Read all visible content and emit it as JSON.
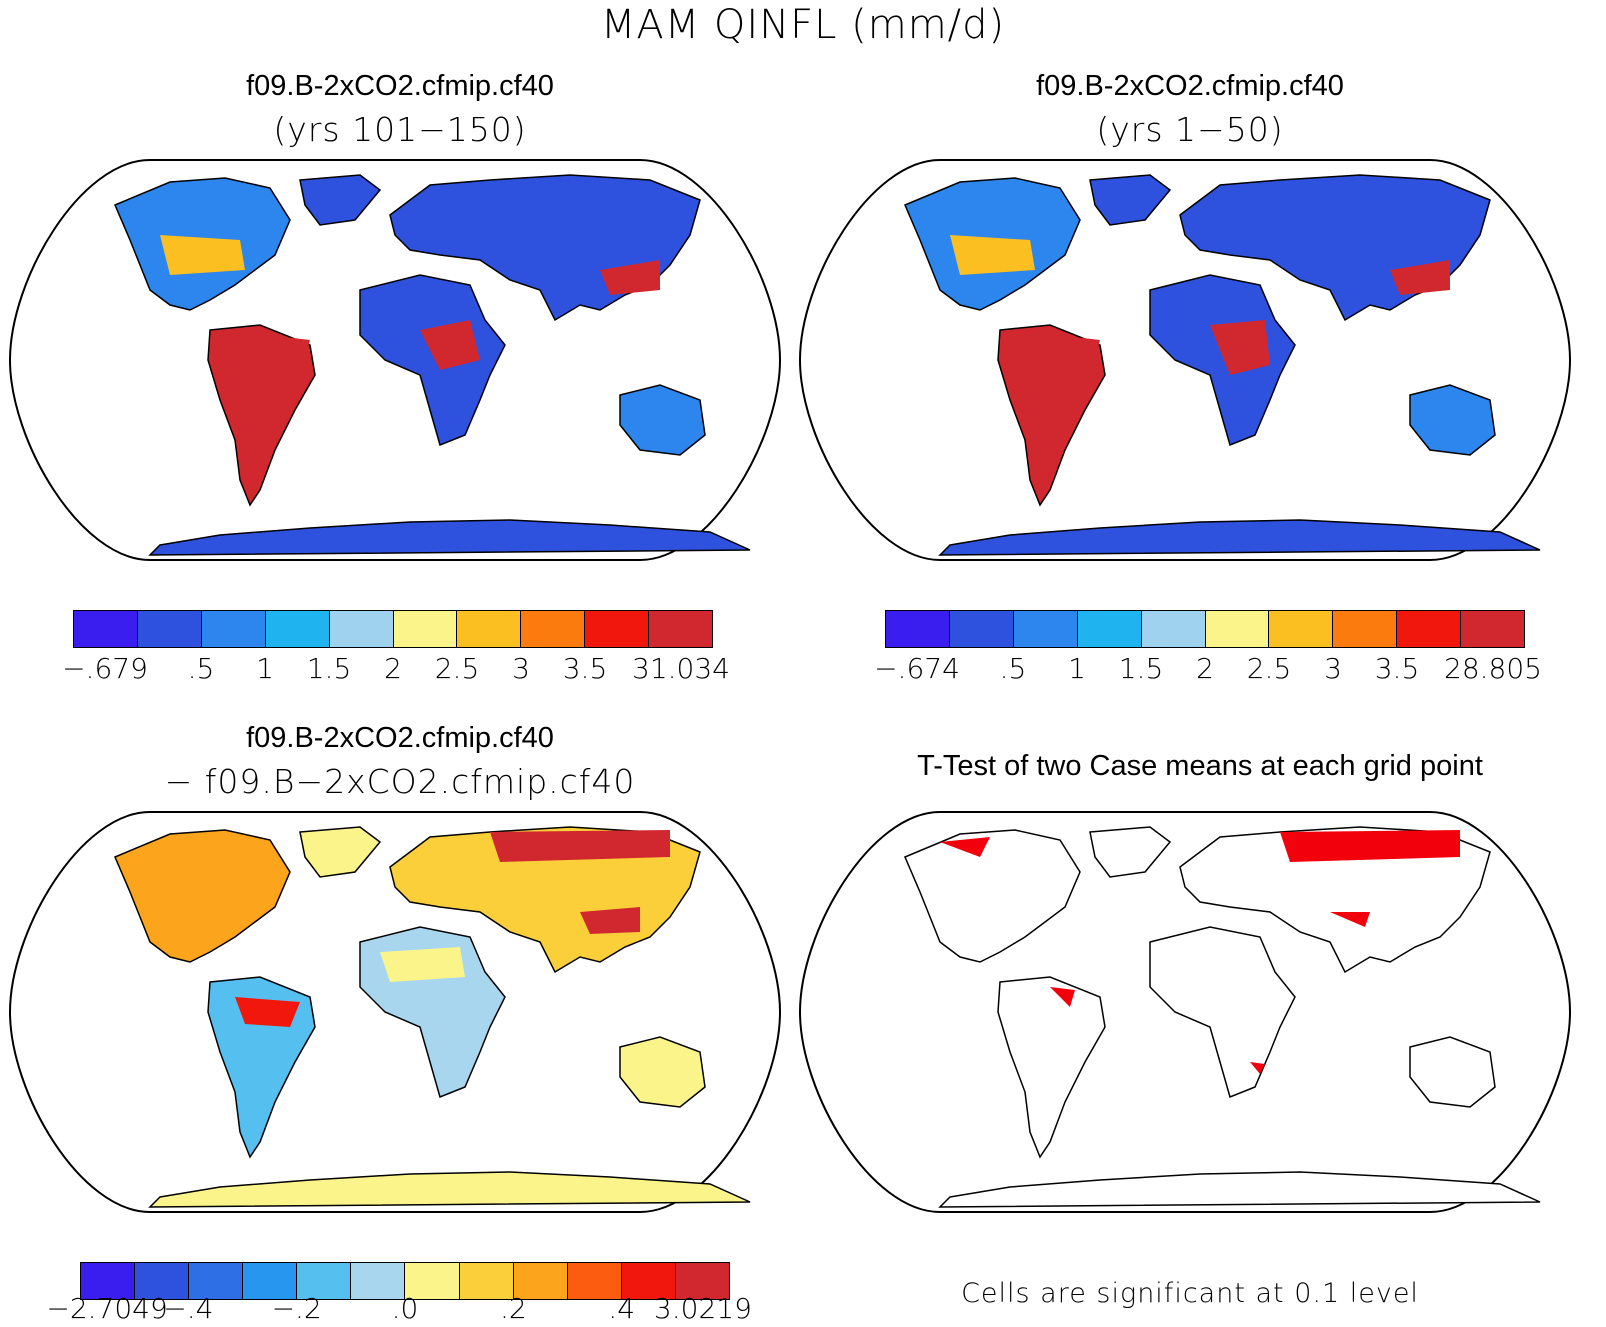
{
  "title": "MAM QINFL (mm/d)",
  "panels": [
    {
      "title": "f09.B-2xCO2.cfmip.cf40",
      "subtitle": "(yrs 101−150)",
      "colorbar": {
        "colors": [
          "#3a1ef0",
          "#2f52de",
          "#2c86ee",
          "#1fb4f0",
          "#9ed2ee",
          "#fbf48a",
          "#fbbf22",
          "#fb7b0e",
          "#f2170c",
          "#d0282e"
        ],
        "labels": [
          "−.679",
          ".5",
          "1",
          "1.5",
          "2",
          "2.5",
          "3",
          "3.5",
          "31.034"
        ]
      }
    },
    {
      "title": "f09.B-2xCO2.cfmip.cf40",
      "subtitle": "(yrs 1−50)",
      "colorbar": {
        "colors": [
          "#3a1ef0",
          "#2f52de",
          "#2c86ee",
          "#1fb4f0",
          "#9ed2ee",
          "#fbf48a",
          "#fbbf22",
          "#fb7b0e",
          "#f2170c",
          "#d0282e"
        ],
        "labels": [
          "−.674",
          ".5",
          "1",
          "1.5",
          "2",
          "2.5",
          "3",
          "3.5",
          "28.805"
        ]
      }
    },
    {
      "title": "f09.B-2xCO2.cfmip.cf40",
      "subtitle": "− f09.B−2xCO2.cfmip.cf40",
      "colorbar": {
        "colors": [
          "#3a1ef0",
          "#2f52de",
          "#2f6fe6",
          "#2696ee",
          "#55c0f0",
          "#a8d6ef",
          "#fbf48a",
          "#fbcf3a",
          "#fba41c",
          "#fb5c10",
          "#f2170c",
          "#d0282e"
        ],
        "labels": [
          "−2.7049",
          "−.4",
          "−.2",
          ".0",
          ".2",
          ".4",
          "3.0219"
        ]
      }
    },
    {
      "title": "T-Test of two Case means at each grid point",
      "note": "Cells are significant at 0.1 level",
      "significant_color": "#f2000c"
    }
  ]
}
